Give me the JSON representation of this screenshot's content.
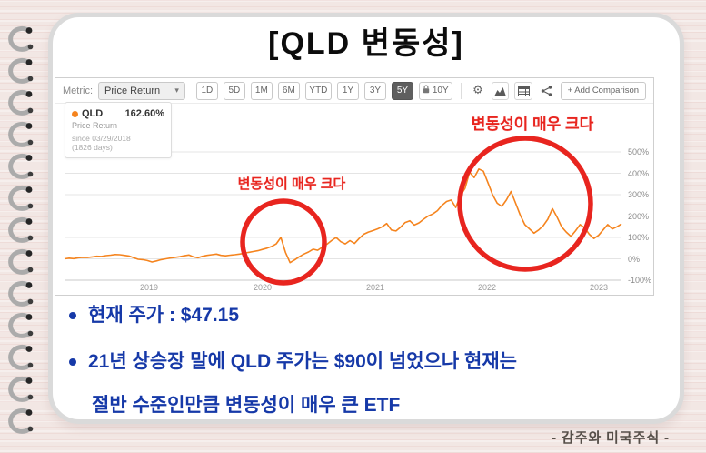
{
  "page": {
    "title": "[QLD 변동성]",
    "signature": "- 감주와 미국주식 -",
    "background_color": "#f2e7e4",
    "accent_blue": "#1639a8",
    "accent_red": "#e8251f"
  },
  "chart_ui": {
    "metric_label": "Metric:",
    "metric_value": "Price Return",
    "ranges": [
      {
        "label": "1D"
      },
      {
        "label": "5D"
      },
      {
        "label": "1M"
      },
      {
        "label": "6M"
      },
      {
        "label": "YTD"
      },
      {
        "label": "1Y"
      },
      {
        "label": "3Y"
      },
      {
        "label": "5Y",
        "active": true
      },
      {
        "label": "10Y",
        "locked": true
      }
    ],
    "icons": [
      "gear-icon",
      "area-chart-icon",
      "calendar-icon",
      "share-icon"
    ],
    "add_comparison_label": "+ Add Comparison",
    "legend": {
      "ticker": "QLD",
      "return_value": "162.60%",
      "metric": "Price Return",
      "since": "since 03/29/2018",
      "days": "(1826 days)"
    }
  },
  "annotations": {
    "left": "변동성이 매우 크다",
    "right": "변동성이 매우 크다"
  },
  "notes": {
    "bullet1": "현재 주가 : $47.15",
    "bullet2_line1": "21년 상승장 말에 QLD 주가는 $90이 넘었으나 현재는",
    "bullet2_line2": "절반 수준인만큼 변동성이 매우 큰 ETF"
  },
  "chart_data": {
    "type": "line",
    "title": "QLD Price Return, 5Y",
    "unit": "percent",
    "x_range": [
      "2018-03-29",
      "2023-03"
    ],
    "x_tick_labels": [
      "2019",
      "2020",
      "2021",
      "2022",
      "2023"
    ],
    "y_tick_labels": [
      "500%",
      "400%",
      "300%",
      "200%",
      "100%",
      "0%",
      "-100%"
    ],
    "ylim": [
      -100,
      500
    ],
    "grid": "horizontal",
    "line_color": "#f5841e",
    "legend_position": "top-left",
    "series": [
      {
        "name": "QLD",
        "final_value_pct": 162.6,
        "values": [
          0,
          3,
          1,
          5,
          7,
          6,
          9,
          12,
          11,
          15,
          17,
          20,
          19,
          16,
          13,
          5,
          -2,
          -4,
          -8,
          -15,
          -10,
          -4,
          0,
          4,
          7,
          10,
          14,
          18,
          9,
          5,
          12,
          16,
          19,
          22,
          16,
          14,
          17,
          19,
          22,
          26,
          30,
          34,
          38,
          44,
          50,
          58,
          70,
          100,
          30,
          -18,
          -5,
          10,
          22,
          32,
          45,
          40,
          55,
          68,
          85,
          100,
          80,
          70,
          85,
          72,
          95,
          115,
          125,
          132,
          140,
          150,
          165,
          135,
          130,
          148,
          170,
          178,
          158,
          168,
          185,
          200,
          210,
          225,
          250,
          268,
          275,
          240,
          295,
          330,
          405,
          380,
          420,
          410,
          355,
          300,
          260,
          245,
          275,
          315,
          260,
          205,
          160,
          140,
          120,
          135,
          155,
          185,
          235,
          195,
          150,
          125,
          105,
          130,
          160,
          145,
          115,
          95,
          110,
          135,
          160,
          140,
          150,
          163
        ]
      }
    ],
    "annotated_regions": [
      {
        "label": "변동성이 매우 크다",
        "period": "2020 COVID crash"
      },
      {
        "label": "변동성이 매우 크다",
        "period": "2022 bear market"
      }
    ]
  }
}
